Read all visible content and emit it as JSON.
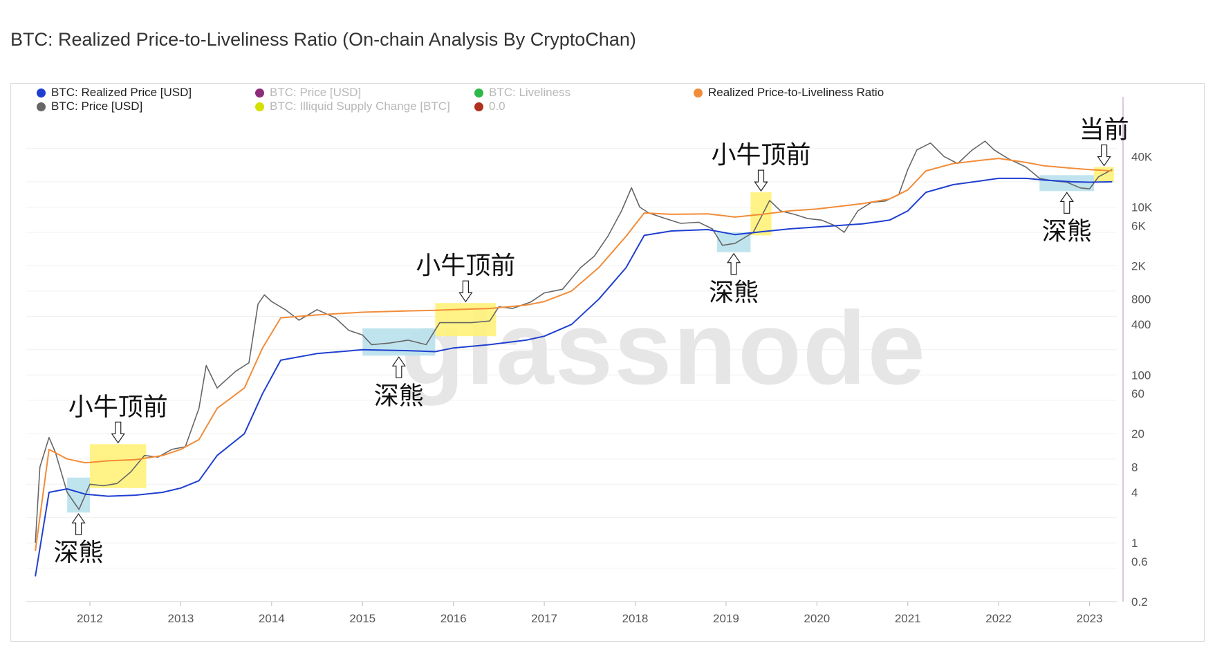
{
  "title": "BTC: Realized Price-to-Liveliness Ratio (On-chain Analysis By CryptoChan)",
  "watermark": "glassnode",
  "legend": [
    {
      "label": "BTC: Realized Price [USD]",
      "color": "#1f3fd1",
      "active": true
    },
    {
      "label": "BTC: Price [USD]",
      "color": "#8c2b7a",
      "active": false
    },
    {
      "label": "BTC: Liveliness",
      "color": "#2fb84a",
      "active": false
    },
    {
      "label": "Realized Price-to-Liveliness Ratio",
      "color": "#f28c38",
      "active": true
    },
    {
      "label": "BTC: Price [USD]",
      "color": "#666666",
      "active": true
    },
    {
      "label": "BTC: Illiquid Supply Change [BTC]",
      "color": "#d4e000",
      "active": false
    },
    {
      "label": "0.0",
      "color": "#b0311c",
      "active": false
    }
  ],
  "chart_data": {
    "type": "line",
    "y_scale": "log",
    "ylim": [
      0.2,
      60000
    ],
    "xlim": [
      "2011-05",
      "2023-03"
    ],
    "x_ticks": [
      "2012",
      "2013",
      "2014",
      "2015",
      "2016",
      "2017",
      "2018",
      "2019",
      "2020",
      "2021",
      "2022",
      "2023"
    ],
    "y_ticks": [
      "40K",
      "10K",
      "6K",
      "2K",
      "800",
      "400",
      "100",
      "60",
      "20",
      "8",
      "4",
      "1",
      "0.6",
      "0.2"
    ],
    "y_tick_values": [
      40000,
      10000,
      6000,
      2000,
      800,
      400,
      100,
      60,
      20,
      8,
      4,
      1,
      0.6,
      0.2
    ],
    "grid": true,
    "legend_position": "top",
    "series": [
      {
        "name": "BTC: Price [USD]",
        "color": "#666666",
        "x": [
          2011.4,
          2011.45,
          2011.55,
          2011.62,
          2011.75,
          2011.88,
          2012.0,
          2012.15,
          2012.3,
          2012.45,
          2012.6,
          2012.75,
          2012.9,
          2013.05,
          2013.2,
          2013.28,
          2013.4,
          2013.6,
          2013.75,
          2013.85,
          2013.92,
          2014.0,
          2014.15,
          2014.3,
          2014.5,
          2014.7,
          2014.85,
          2015.0,
          2015.1,
          2015.3,
          2015.5,
          2015.7,
          2015.85,
          2016.0,
          2016.2,
          2016.4,
          2016.5,
          2016.65,
          2016.85,
          2017.0,
          2017.2,
          2017.4,
          2017.55,
          2017.7,
          2017.85,
          2017.96,
          2018.05,
          2018.15,
          2018.3,
          2018.5,
          2018.7,
          2018.85,
          2018.96,
          2019.1,
          2019.3,
          2019.48,
          2019.6,
          2019.75,
          2019.9,
          2020.05,
          2020.2,
          2020.3,
          2020.45,
          2020.6,
          2020.75,
          2020.9,
          2021.0,
          2021.1,
          2021.25,
          2021.4,
          2021.55,
          2021.7,
          2021.85,
          2021.95,
          2022.1,
          2022.3,
          2022.45,
          2022.6,
          2022.75,
          2022.9,
          2023.0,
          2023.1,
          2023.25
        ],
        "values": [
          1,
          8,
          18,
          12,
          4,
          2.5,
          5,
          4.8,
          5.1,
          7,
          11,
          10.5,
          13,
          14,
          40,
          130,
          70,
          110,
          140,
          700,
          900,
          750,
          600,
          450,
          600,
          480,
          340,
          300,
          230,
          240,
          260,
          230,
          420,
          420,
          420,
          440,
          650,
          620,
          740,
          950,
          1050,
          1900,
          2600,
          4500,
          9000,
          17000,
          10000,
          8500,
          7500,
          6400,
          6600,
          5500,
          3500,
          3700,
          5000,
          12000,
          9000,
          8200,
          7300,
          7000,
          6000,
          5000,
          9000,
          11400,
          11800,
          14000,
          28000,
          48000,
          58000,
          40000,
          33000,
          47000,
          61000,
          48000,
          38000,
          30000,
          22000,
          20500,
          19800,
          16900,
          16500,
          23000,
          28000
        ]
      },
      {
        "name": "BTC: Realized Price [USD]",
        "color": "#1f3fd1",
        "x": [
          2011.4,
          2011.55,
          2011.75,
          2011.95,
          2012.2,
          2012.5,
          2012.8,
          2013.0,
          2013.2,
          2013.4,
          2013.7,
          2013.9,
          2014.1,
          2014.5,
          2015.0,
          2015.5,
          2015.8,
          2016.0,
          2016.4,
          2016.8,
          2017.0,
          2017.3,
          2017.6,
          2017.9,
          2018.1,
          2018.4,
          2018.8,
          2019.1,
          2019.4,
          2019.7,
          2020.0,
          2020.5,
          2020.8,
          2021.0,
          2021.2,
          2021.5,
          2021.8,
          2022.0,
          2022.3,
          2022.5,
          2022.8,
          2023.0,
          2023.25
        ],
        "values": [
          0.4,
          4,
          4.4,
          3.8,
          3.6,
          3.7,
          4,
          4.5,
          5.5,
          11,
          20,
          60,
          150,
          180,
          200,
          195,
          190,
          210,
          230,
          260,
          290,
          400,
          800,
          1900,
          4600,
          5200,
          5400,
          4700,
          5100,
          5500,
          5800,
          6300,
          7000,
          9000,
          15000,
          18500,
          20500,
          22000,
          22000,
          21000,
          20000,
          19800,
          20000
        ]
      },
      {
        "name": "Realized Price-to-Liveliness Ratio",
        "color": "#f28c38",
        "x": [
          2011.4,
          2011.55,
          2011.75,
          2011.95,
          2012.2,
          2012.5,
          2012.8,
          2013.0,
          2013.2,
          2013.4,
          2013.7,
          2013.9,
          2014.1,
          2014.5,
          2015.0,
          2015.5,
          2015.8,
          2016.0,
          2016.4,
          2016.8,
          2017.0,
          2017.3,
          2017.6,
          2017.9,
          2018.1,
          2018.4,
          2018.8,
          2019.1,
          2019.4,
          2019.7,
          2020.0,
          2020.5,
          2020.8,
          2021.0,
          2021.2,
          2021.5,
          2021.8,
          2022.0,
          2022.3,
          2022.5,
          2022.8,
          2023.0,
          2023.25
        ],
        "values": [
          0.8,
          13,
          10,
          9,
          9.5,
          9.8,
          11,
          13,
          17,
          40,
          70,
          210,
          480,
          520,
          560,
          580,
          590,
          600,
          620,
          680,
          750,
          1000,
          1900,
          4500,
          8500,
          8200,
          8300,
          7600,
          8200,
          9000,
          9500,
          11000,
          12500,
          16000,
          27000,
          33000,
          36000,
          38000,
          34000,
          31000,
          29000,
          28000,
          27000
        ]
      }
    ],
    "highlights": [
      {
        "kind": "bear",
        "label": "深熊",
        "x": [
          2011.75,
          2012.0
        ],
        "y": [
          2.3,
          6
        ]
      },
      {
        "kind": "bull",
        "label": "小牛顶前",
        "x": [
          2012.0,
          2012.62
        ],
        "y": [
          4.5,
          15
        ]
      },
      {
        "kind": "bear",
        "label": "深熊",
        "x": [
          2015.0,
          2015.8
        ],
        "y": [
          170,
          360
        ]
      },
      {
        "kind": "bull",
        "label": "小牛顶前",
        "x": [
          2015.8,
          2016.47
        ],
        "y": [
          290,
          720
        ]
      },
      {
        "kind": "bear",
        "label": "深熊",
        "x": [
          2018.9,
          2019.27
        ],
        "y": [
          2900,
          5000
        ]
      },
      {
        "kind": "bull",
        "label": "小牛顶前",
        "x": [
          2019.27,
          2019.5
        ],
        "y": [
          4600,
          15000
        ]
      },
      {
        "kind": "bear",
        "label": "深熊",
        "x": [
          2022.45,
          2023.05
        ],
        "y": [
          15500,
          24000
        ]
      },
      {
        "kind": "bull",
        "label": "当前",
        "x": [
          2023.05,
          2023.27
        ],
        "y": [
          20000,
          30000
        ]
      }
    ]
  }
}
